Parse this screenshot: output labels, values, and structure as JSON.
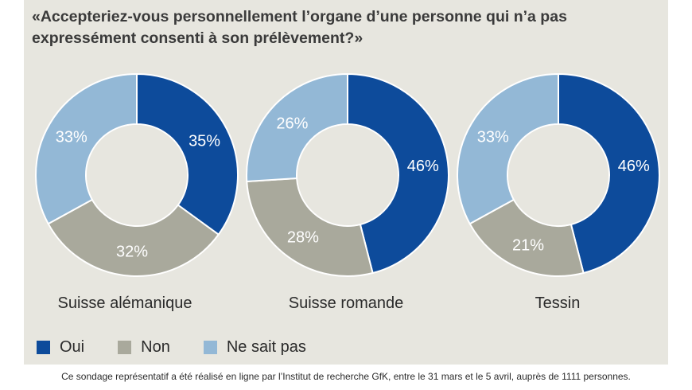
{
  "chart_data": {
    "type": "pie",
    "title": "«Accepteriez-vous personnellement l’organe d’une personne qui n’a pas expressément consenti à son prélèvement?»",
    "legend_placement": "bottom-left",
    "series_legend": [
      {
        "name": "Oui",
        "color": "#0d4b9b"
      },
      {
        "name": "Non",
        "color": "#a9a99c"
      },
      {
        "name": "Ne sait pas",
        "color": "#93b8d6"
      }
    ],
    "charts": [
      {
        "label": "Suisse alémanique",
        "values": [
          35,
          32,
          33
        ],
        "value_labels": [
          "35%",
          "32%",
          "33%"
        ]
      },
      {
        "label": "Suisse romande",
        "values": [
          46,
          28,
          26
        ],
        "value_labels": [
          "46%",
          "28%",
          "26%"
        ]
      },
      {
        "label": "Tessin",
        "values": [
          46,
          21,
          33
        ],
        "value_labels": [
          "46%",
          "21%",
          "33%"
        ]
      }
    ]
  },
  "footnote": "Ce sondage représentatif a été réalisé en ligne par l’Institut de recherche GfK, entre le 31 mars et le 5 avril, auprès de 1111 personnes."
}
